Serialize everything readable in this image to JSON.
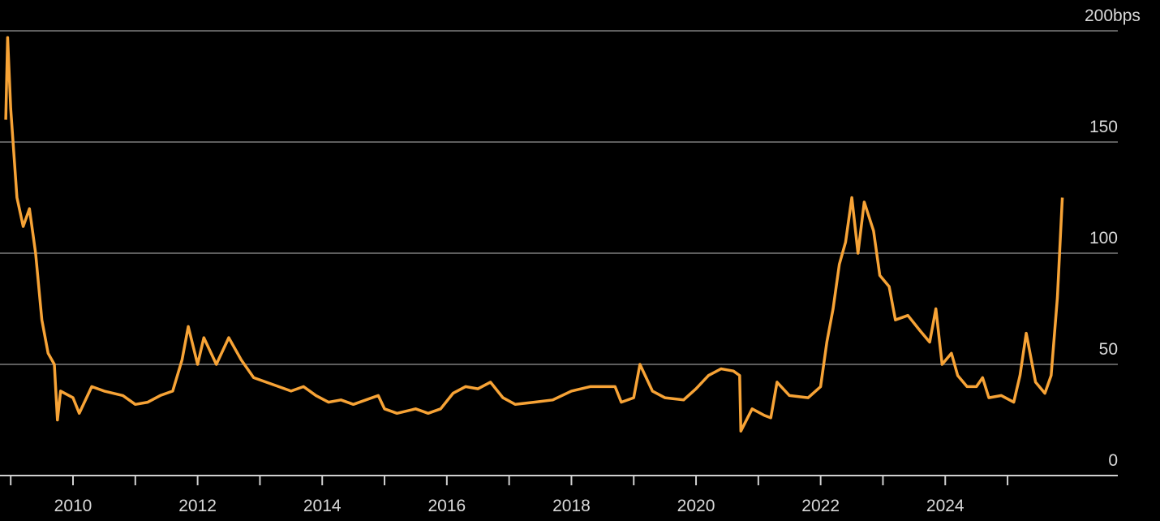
{
  "chart_data": {
    "type": "line",
    "xlim": [
      2008.828,
      2026.77
    ],
    "ylim": [
      0,
      200
    ],
    "yticks": [
      0,
      50,
      100,
      150,
      {
        "value": 200,
        "label": "200bps"
      }
    ],
    "xticks": [
      2010,
      2012,
      2014,
      2016,
      2018,
      2020,
      2022,
      2024
    ],
    "xticks_minor": [
      2009,
      2011,
      2013,
      2015,
      2017,
      2019,
      2021,
      2023,
      2025
    ],
    "grid": true,
    "series": [
      {
        "color": "#f7a336",
        "x": [
          2008.92,
          2008.95,
          2009.0,
          2009.1,
          2009.2,
          2009.3,
          2009.4,
          2009.5,
          2009.6,
          2009.7,
          2009.75,
          2009.8,
          2010.0,
          2010.1,
          2010.3,
          2010.5,
          2010.8,
          2011.0,
          2011.2,
          2011.4,
          2011.6,
          2011.75,
          2011.85,
          2012.0,
          2012.1,
          2012.3,
          2012.5,
          2012.7,
          2012.9,
          2013.1,
          2013.3,
          2013.5,
          2013.7,
          2013.9,
          2014.1,
          2014.3,
          2014.5,
          2014.7,
          2014.9,
          2015.0,
          2015.2,
          2015.5,
          2015.7,
          2015.9,
          2016.1,
          2016.3,
          2016.5,
          2016.7,
          2016.9,
          2017.1,
          2017.4,
          2017.7,
          2018.0,
          2018.3,
          2018.7,
          2018.8,
          2019.0,
          2019.1,
          2019.3,
          2019.5,
          2019.8,
          2020.0,
          2020.2,
          2020.4,
          2020.6,
          2020.7,
          2020.72,
          2020.9,
          2021.1,
          2021.2,
          2021.3,
          2021.5,
          2021.8,
          2022.0,
          2022.1,
          2022.2,
          2022.3,
          2022.4,
          2022.5,
          2022.6,
          2022.7,
          2022.85,
          2022.95,
          2023.1,
          2023.2,
          2023.4,
          2023.6,
          2023.75,
          2023.85,
          2023.95,
          2024.1,
          2024.2,
          2024.35,
          2024.5,
          2024.6,
          2024.7,
          2024.9,
          2025.1,
          2025.2,
          2025.3,
          2025.45,
          2025.6,
          2025.7,
          2025.8,
          2025.88
        ],
        "values": [
          160,
          197,
          165,
          125,
          112,
          120,
          100,
          70,
          55,
          50,
          25,
          38,
          35,
          28,
          40,
          38,
          36,
          32,
          33,
          36,
          38,
          52,
          67,
          50,
          62,
          50,
          62,
          52,
          44,
          42,
          40,
          38,
          40,
          36,
          33,
          34,
          32,
          34,
          36,
          30,
          28,
          30,
          28,
          30,
          37,
          40,
          39,
          42,
          35,
          32,
          33,
          34,
          38,
          40,
          40,
          33,
          35,
          50,
          38,
          35,
          34,
          39,
          45,
          48,
          47,
          45,
          20,
          30,
          27,
          26,
          42,
          36,
          35,
          40,
          60,
          75,
          95,
          105,
          125,
          100,
          123,
          110,
          90,
          85,
          70,
          72,
          65,
          60,
          75,
          50,
          55,
          45,
          40,
          40,
          44,
          35,
          36,
          33,
          45,
          64,
          42,
          37,
          45,
          80,
          125
        ]
      }
    ]
  }
}
